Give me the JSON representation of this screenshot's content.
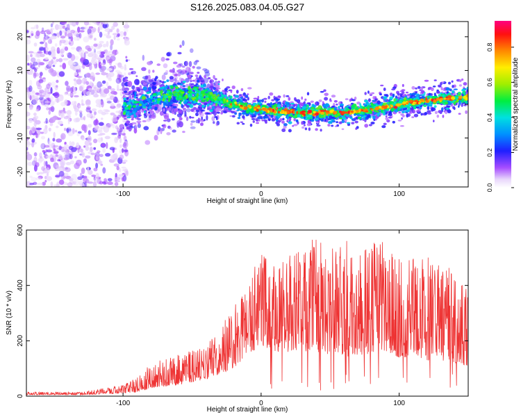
{
  "figure": {
    "title": "S126.2025.083.04.05.G27"
  },
  "chart_data": [
    {
      "type": "heatmap",
      "xlabel": "Height of straight line (km)",
      "ylabel": "Frequency (Hz)",
      "xlim": [
        -170,
        150
      ],
      "ylim": [
        -24.5,
        24.5
      ],
      "xticks": [
        -100,
        0,
        100
      ],
      "yticks": [
        -20,
        -10,
        0,
        10,
        20
      ],
      "grid": false,
      "colorbar": {
        "label": "Normalized spectral amplitude",
        "range": [
          0,
          0.95
        ],
        "ticks": [
          0.0,
          0.2,
          0.4,
          0.6,
          0.8
        ],
        "colormap": "rainbow (white → purple → blue → cyan → green → yellow → orange → red → magenta)"
      },
      "ridge": {
        "description": "Concentrated signal ridge of frequency vs height",
        "x": [
          -100,
          -80,
          -60,
          -40,
          -30,
          -20,
          -10,
          0,
          10,
          20,
          30,
          40,
          50,
          60,
          70,
          80,
          90,
          100,
          110,
          120,
          130,
          140,
          148
        ],
        "y": [
          -1.0,
          1.5,
          3.0,
          2.5,
          1.5,
          0,
          -1.0,
          -1.5,
          -2.0,
          -2.3,
          -2.5,
          -2.5,
          -2.5,
          -2.5,
          -2.0,
          -1.5,
          -0.8,
          0.0,
          0.5,
          1.0,
          1.5,
          1.7,
          2.0
        ],
        "peak_amplitude": 0.95
      },
      "noise_region": {
        "description": "Diffuse low-amplitude noise across all frequencies",
        "x_range": [
          -170,
          -97
        ]
      }
    },
    {
      "type": "line",
      "xlabel": "Height of straight line (km)",
      "ylabel": "SNR (10 * v/v)",
      "xlim": [
        -170,
        150
      ],
      "ylim": [
        0,
        600
      ],
      "xticks": [
        -100,
        0,
        100
      ],
      "yticks": [
        0,
        200,
        400,
        600
      ],
      "grid": false,
      "color": "#ee3333",
      "envelope": {
        "x": [
          -170,
          -130,
          -100,
          -90,
          -85,
          -80,
          -60,
          -50,
          -40,
          -30,
          -20,
          -10,
          0,
          10,
          20,
          30,
          40,
          50,
          60,
          70,
          80,
          90,
          100,
          110,
          120,
          130,
          140,
          150
        ],
        "peak": [
          15,
          15,
          40,
          70,
          90,
          120,
          150,
          165,
          180,
          260,
          320,
          420,
          520,
          480,
          520,
          540,
          580,
          520,
          600,
          520,
          590,
          560,
          500,
          500,
          530,
          480,
          460,
          380
        ],
        "base": [
          5,
          5,
          10,
          15,
          20,
          30,
          40,
          50,
          60,
          80,
          100,
          150,
          180,
          160,
          160,
          160,
          160,
          150,
          140,
          150,
          150,
          160,
          140,
          140,
          130,
          130,
          120,
          110
        ]
      }
    }
  ]
}
